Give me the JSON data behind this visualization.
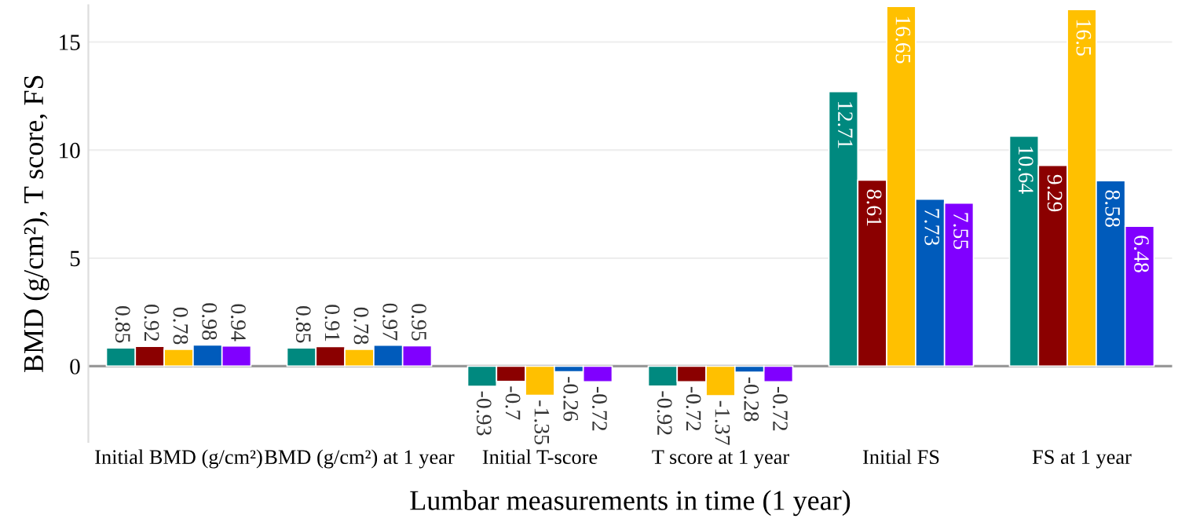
{
  "chart_data": {
    "type": "bar",
    "xlabel": "Lumbar measurements in time (1 year)",
    "ylabel": "BMD (g/cm²), T score, FS",
    "categories": [
      "Initial BMD (g/cm²)",
      "BMD (g/cm²) at 1 year",
      "Initial T-score",
      "T score at 1 year",
      "Initial FS",
      "FS at 1 year"
    ],
    "series": [
      {
        "color": "#00897f",
        "values": [
          0.85,
          0.85,
          -0.93,
          -0.92,
          12.71,
          10.64
        ]
      },
      {
        "color": "#8b0000",
        "values": [
          0.92,
          0.91,
          -0.7,
          -0.72,
          8.61,
          9.29
        ]
      },
      {
        "color": "#ffc000",
        "values": [
          0.78,
          0.78,
          -1.35,
          -1.37,
          16.65,
          16.5
        ]
      },
      {
        "color": "#005bbb",
        "values": [
          0.98,
          0.97,
          -0.26,
          -0.28,
          7.73,
          8.58
        ]
      },
      {
        "color": "#8000ff",
        "values": [
          0.94,
          0.95,
          -0.72,
          -0.72,
          7.55,
          6.48
        ]
      }
    ],
    "ylim": [
      -3.5,
      16.7
    ],
    "yticks": [
      0,
      5,
      10,
      15
    ],
    "grid": "y",
    "data_labels": true
  }
}
